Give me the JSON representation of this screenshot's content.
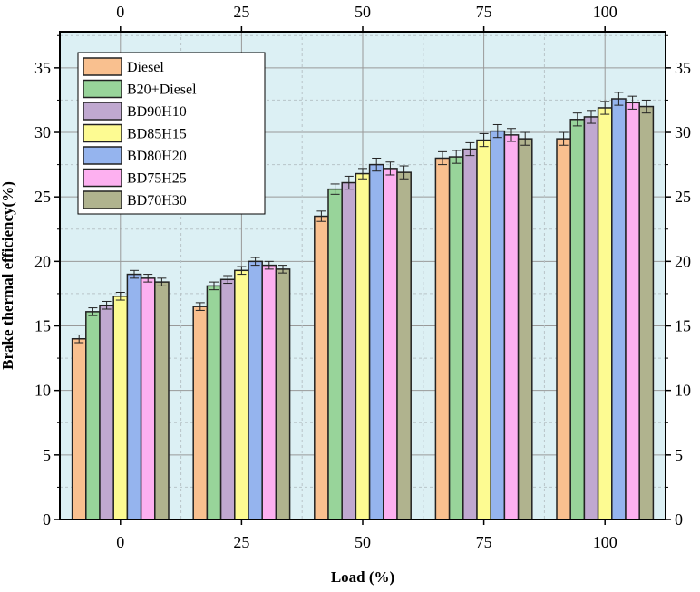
{
  "chart_data": {
    "type": "bar",
    "xlabel": "Load (%)",
    "ylabel": "Brake thermal efficiency(%)",
    "categories": [
      "0",
      "25",
      "50",
      "75",
      "100"
    ],
    "ylim": [
      0,
      37.8
    ],
    "yticks": [
      0,
      5,
      10,
      15,
      20,
      25,
      30,
      35
    ],
    "grid": true,
    "legend_position": "top-left",
    "background_color": "#dcf0f4",
    "series": [
      {
        "name": "Diesel",
        "color": "#f9c08f",
        "values": [
          14.0,
          16.5,
          23.5,
          28.0,
          29.5
        ],
        "errors": [
          0.3,
          0.3,
          0.4,
          0.5,
          0.5
        ]
      },
      {
        "name": "B20+Diesel",
        "color": "#98d49a",
        "values": [
          16.1,
          18.1,
          25.6,
          28.1,
          31.0
        ],
        "errors": [
          0.3,
          0.3,
          0.4,
          0.5,
          0.5
        ]
      },
      {
        "name": "BD90H10",
        "color": "#c0a8d0",
        "values": [
          16.6,
          18.6,
          26.1,
          28.7,
          31.2
        ],
        "errors": [
          0.3,
          0.3,
          0.5,
          0.5,
          0.5
        ]
      },
      {
        "name": "BD85H15",
        "color": "#fdfb92",
        "values": [
          17.3,
          19.3,
          26.8,
          29.4,
          31.9
        ],
        "errors": [
          0.3,
          0.3,
          0.4,
          0.5,
          0.5
        ]
      },
      {
        "name": "BD80H20",
        "color": "#95b4ee",
        "values": [
          19.0,
          20.0,
          27.5,
          30.1,
          32.6
        ],
        "errors": [
          0.3,
          0.3,
          0.5,
          0.5,
          0.5
        ]
      },
      {
        "name": "BD75H25",
        "color": "#fdb0f0",
        "values": [
          18.7,
          19.7,
          27.2,
          29.8,
          32.3
        ],
        "errors": [
          0.3,
          0.3,
          0.5,
          0.5,
          0.5
        ]
      },
      {
        "name": "BD70H30",
        "color": "#b0b38e",
        "values": [
          18.4,
          19.4,
          26.9,
          29.5,
          32.0
        ],
        "errors": [
          0.3,
          0.3,
          0.5,
          0.5,
          0.5
        ]
      }
    ]
  }
}
